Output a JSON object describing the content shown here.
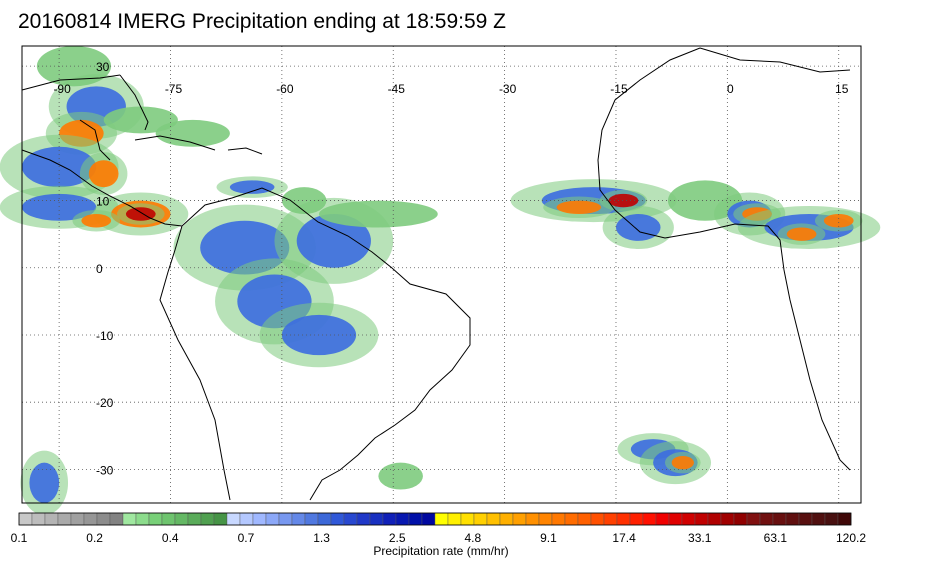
{
  "title": "20160814 IMERG Precipitation ending at 18:59:59 Z",
  "map": {
    "lon_range": [
      -95,
      18
    ],
    "lat_range": [
      -35,
      33
    ],
    "lon_ticks": [
      -90,
      -75,
      -60,
      -45,
      -30,
      -15,
      0,
      15
    ],
    "lat_ticks": [
      30,
      10,
      0,
      -10,
      -20,
      -30
    ],
    "grid": "dotted"
  },
  "colorbar": {
    "label": "Precipitation rate (mm/hr)",
    "tick_labels": [
      "0.1",
      "0.2",
      "0.4",
      "0.7",
      "1.3",
      "2.5",
      "4.8",
      "9.1",
      "17.4",
      "33.1",
      "63.1",
      "120.2"
    ],
    "colors": [
      "#c8c8c8",
      "#bdbdbd",
      "#b4b4b4",
      "#aaaaaa",
      "#a0a0a0",
      "#969696",
      "#8c8c8c",
      "#828282",
      "#a0e8a0",
      "#8cdc8c",
      "#78d078",
      "#6ec46e",
      "#64b864",
      "#5aac5a",
      "#50a050",
      "#469446",
      "#c8d8ff",
      "#b4c8ff",
      "#a0b8ff",
      "#8ca8f8",
      "#7898f0",
      "#6488e8",
      "#5078e0",
      "#3c68d8",
      "#3058d8",
      "#2848d0",
      "#2038c8",
      "#1830c0",
      "#1020b8",
      "#0818b0",
      "#0010a8",
      "#0008a0",
      "#ffff00",
      "#fff000",
      "#ffe000",
      "#ffd000",
      "#ffc000",
      "#ffb000",
      "#ffa000",
      "#ff9000",
      "#ff8400",
      "#ff7800",
      "#ff6c00",
      "#ff6000",
      "#ff5000",
      "#ff4000",
      "#ff3000",
      "#ff2000",
      "#ff1000",
      "#f00000",
      "#e00000",
      "#d00000",
      "#c00000",
      "#b00000",
      "#a00000",
      "#900000",
      "#801010",
      "#701010",
      "#681010",
      "#601010",
      "#581010",
      "#501010",
      "#481010",
      "#400808"
    ]
  },
  "legend_colors": {
    "light": "#7ecb7e",
    "moderate": "#3c6de0",
    "heavy": "#ff7a00",
    "extreme": "#c00000",
    "coast": "#000000",
    "gridline": "#555555"
  },
  "precip_cells": [
    {
      "lon": -88,
      "lat": 30,
      "rlon": 5,
      "rlat": 3,
      "level": "light"
    },
    {
      "lon": -85,
      "lat": 24,
      "rlon": 4,
      "rlat": 3,
      "level": "moderate"
    },
    {
      "lon": -87,
      "lat": 20,
      "rlon": 3,
      "rlat": 2,
      "level": "heavy"
    },
    {
      "lon": -79,
      "lat": 22,
      "rlon": 5,
      "rlat": 2,
      "level": "light"
    },
    {
      "lon": -72,
      "lat": 20,
      "rlon": 5,
      "rlat": 2,
      "level": "light"
    },
    {
      "lon": -90,
      "lat": 15,
      "rlon": 5,
      "rlat": 3,
      "level": "moderate"
    },
    {
      "lon": -84,
      "lat": 14,
      "rlon": 2,
      "rlat": 2,
      "level": "heavy"
    },
    {
      "lon": -90,
      "lat": 9,
      "rlon": 5,
      "rlat": 2,
      "level": "moderate"
    },
    {
      "lon": -79,
      "lat": 8,
      "rlon": 4,
      "rlat": 2,
      "level": "heavy"
    },
    {
      "lon": -79,
      "lat": 8,
      "rlon": 2,
      "rlat": 1,
      "level": "extreme"
    },
    {
      "lon": -85,
      "lat": 7,
      "rlon": 2,
      "rlat": 1,
      "level": "heavy"
    },
    {
      "lon": -64,
      "lat": 12,
      "rlon": 3,
      "rlat": 1,
      "level": "moderate"
    },
    {
      "lon": -57,
      "lat": 10,
      "rlon": 3,
      "rlat": 2,
      "level": "light"
    },
    {
      "lon": -65,
      "lat": 3,
      "rlon": 6,
      "rlat": 4,
      "level": "moderate"
    },
    {
      "lon": -53,
      "lat": 4,
      "rlon": 5,
      "rlat": 4,
      "level": "moderate"
    },
    {
      "lon": -61,
      "lat": -5,
      "rlon": 5,
      "rlat": 4,
      "level": "moderate"
    },
    {
      "lon": -55,
      "lat": -10,
      "rlon": 5,
      "rlat": 3,
      "level": "moderate"
    },
    {
      "lon": -47,
      "lat": 8,
      "rlon": 8,
      "rlat": 2,
      "level": "light"
    },
    {
      "lon": -18,
      "lat": 10,
      "rlon": 7,
      "rlat": 2,
      "level": "moderate"
    },
    {
      "lon": -20,
      "lat": 9,
      "rlon": 3,
      "rlat": 1,
      "level": "heavy"
    },
    {
      "lon": -14,
      "lat": 10,
      "rlon": 2,
      "rlat": 1,
      "level": "extreme"
    },
    {
      "lon": -12,
      "lat": 6,
      "rlon": 3,
      "rlat": 2,
      "level": "moderate"
    },
    {
      "lon": -3,
      "lat": 10,
      "rlon": 5,
      "rlat": 3,
      "level": "light"
    },
    {
      "lon": 3,
      "lat": 8,
      "rlon": 3,
      "rlat": 2,
      "level": "moderate"
    },
    {
      "lon": 4,
      "lat": 8,
      "rlon": 2,
      "rlat": 1,
      "level": "heavy"
    },
    {
      "lon": 11,
      "lat": 6,
      "rlon": 6,
      "rlat": 2,
      "level": "moderate"
    },
    {
      "lon": 10,
      "lat": 5,
      "rlon": 2,
      "rlat": 1,
      "level": "heavy"
    },
    {
      "lon": 15,
      "lat": 7,
      "rlon": 2,
      "rlat": 1,
      "level": "heavy"
    },
    {
      "lon": -10,
      "lat": -27,
      "rlon": 3,
      "rlat": 1.5,
      "level": "moderate"
    },
    {
      "lon": -7,
      "lat": -29,
      "rlon": 3,
      "rlat": 2,
      "level": "moderate"
    },
    {
      "lon": -6,
      "lat": -29,
      "rlon": 1.5,
      "rlat": 1,
      "level": "heavy"
    },
    {
      "lon": -92,
      "lat": -32,
      "rlon": 2,
      "rlat": 3,
      "level": "moderate"
    },
    {
      "lon": -44,
      "lat": -31,
      "rlon": 3,
      "rlat": 2,
      "level": "light"
    }
  ]
}
